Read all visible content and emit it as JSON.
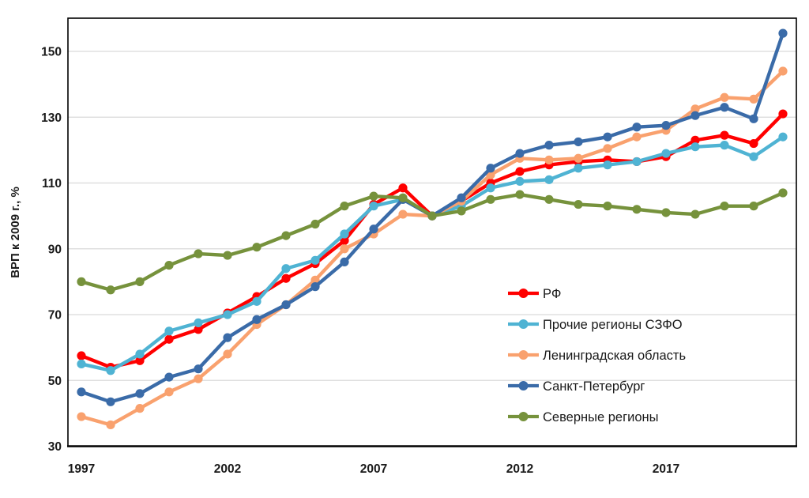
{
  "chart_data": {
    "type": "line",
    "title": "",
    "xlabel": "",
    "ylabel": "ВРП к 2009 г., %",
    "x": [
      1997,
      1998,
      1999,
      2000,
      2001,
      2002,
      2003,
      2004,
      2005,
      2006,
      2007,
      2008,
      2009,
      2010,
      2011,
      2012,
      2013,
      2014,
      2015,
      2016,
      2017,
      2018,
      2019,
      2020,
      2021
    ],
    "xtick_labels": [
      "1997",
      "2002",
      "2007",
      "2012",
      "2017"
    ],
    "xtick_years": [
      1997,
      2002,
      2007,
      2012,
      2017
    ],
    "yticks": [
      30,
      50,
      70,
      90,
      110,
      130,
      150
    ],
    "ytick_labels": [
      "30",
      "50",
      "70",
      "90",
      "110",
      "130",
      "150"
    ],
    "ylim": [
      30,
      160
    ],
    "grid": "horizontal",
    "legend_position": "inside-right-bottom",
    "series": [
      {
        "id": "rf",
        "name": "РФ",
        "color": "#FF0000",
        "values": [
          57.5,
          54,
          56,
          62.5,
          65.5,
          70.5,
          75.5,
          81,
          85.5,
          92.5,
          103.5,
          108.5,
          100,
          104.5,
          110,
          113.5,
          115.5,
          116.5,
          117,
          116.5,
          118,
          123,
          124.5,
          122,
          131
        ]
      },
      {
        "id": "szfo-other",
        "name": "Прочие регионы СЗФО",
        "color": "#4FB3D3",
        "values": [
          55,
          53,
          58,
          65,
          67.5,
          70,
          74,
          84,
          86.5,
          94.5,
          103,
          105,
          100,
          103,
          108.5,
          110.5,
          111,
          114.5,
          115.5,
          116.5,
          119,
          121,
          121.5,
          118,
          124
        ]
      },
      {
        "id": "lenobl",
        "name": "Ленинградская область",
        "color": "#F9A16E",
        "values": [
          39,
          36.5,
          41.5,
          46.5,
          50.5,
          58,
          67,
          73,
          80.5,
          90,
          94.5,
          100.5,
          100,
          104.5,
          112.5,
          117.5,
          117,
          117.5,
          120.5,
          124,
          126,
          132.5,
          136,
          135.5,
          144
        ]
      },
      {
        "id": "spb",
        "name": "Санкт-Петербург",
        "color": "#3A6BA8",
        "values": [
          46.5,
          43.5,
          46,
          51,
          53.5,
          63,
          68.5,
          73,
          78.5,
          86,
          96,
          105,
          100,
          105.5,
          114.5,
          119,
          121.5,
          122.5,
          124,
          127,
          127.5,
          130.5,
          133,
          129.5,
          155.5
        ]
      },
      {
        "id": "north",
        "name": "Северные регионы",
        "color": "#76923C",
        "values": [
          80,
          77.5,
          80,
          85,
          88.5,
          88,
          90.5,
          94,
          97.5,
          103,
          106,
          105.5,
          100,
          101.5,
          105,
          106.5,
          105,
          103.5,
          103,
          102,
          101,
          100.5,
          103,
          103,
          107
        ]
      }
    ]
  },
  "style_colors": {
    "gridline": "#D9D9D9",
    "plot_border": "#000000",
    "tick_text": "#1A1A1A",
    "legend_text": "#1A1A1A"
  }
}
